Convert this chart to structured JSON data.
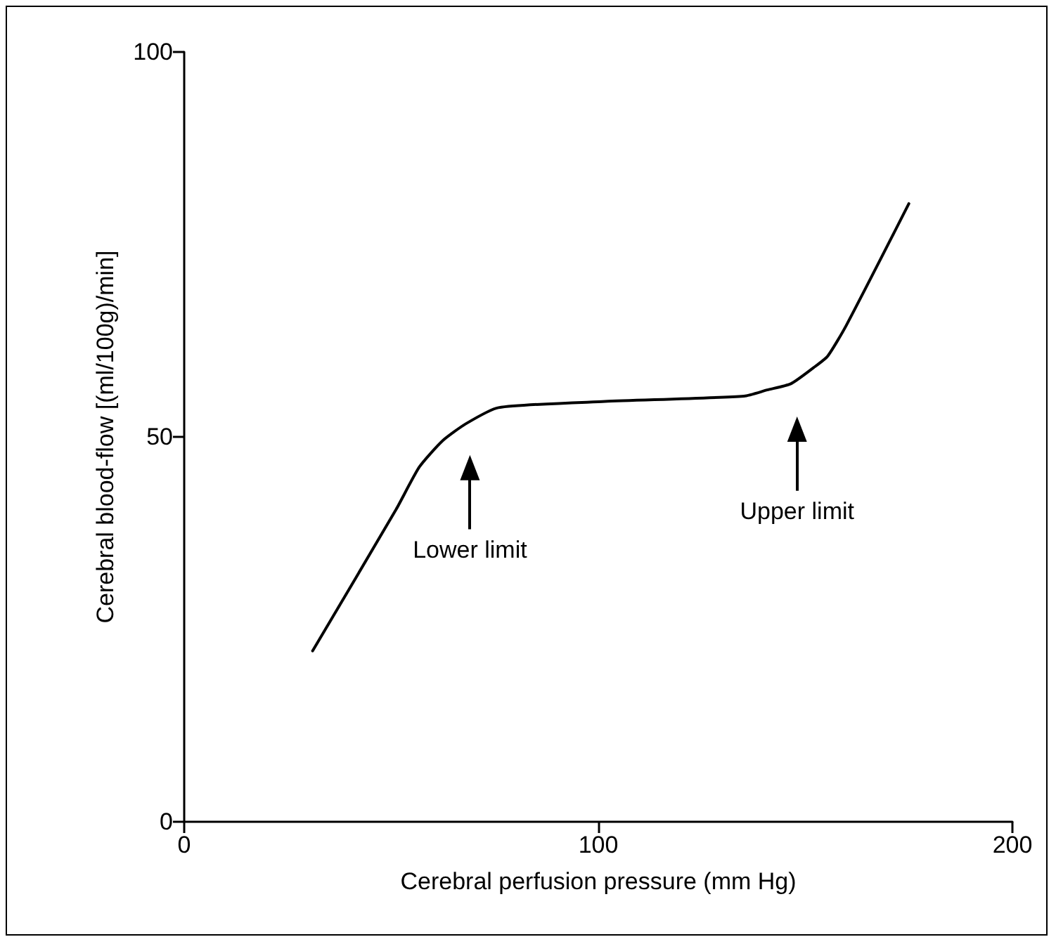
{
  "chart_data": {
    "type": "line",
    "xlabel": "Cerebral perfusion pressure (mm Hg)",
    "ylabel": "Cerebral blood-flow [(ml/100g)/min]",
    "x": [
      31.0,
      51.2,
      56.8,
      62.4,
      68.0,
      75.9,
      101.6,
      135.2,
      140.8,
      146.5,
      152.0,
      155.4,
      159.9,
      175.0
    ],
    "series": [
      {
        "color": "#000000",
        "values": [
          22.2,
          40.6,
          46.1,
          49.5,
          51.7,
          53.8,
          54.6,
          55.3,
          56.1,
          56.9,
          59.0,
          60.5,
          64.5,
          80.3
        ]
      }
    ],
    "xlim": [
      0,
      200
    ],
    "ylim": [
      0,
      100
    ],
    "xticks": [
      0,
      100,
      200
    ],
    "yticks": [
      0,
      50,
      100
    ],
    "marker": "none",
    "line_style": "solid",
    "annotations": [
      {
        "text": "Lower limit",
        "x": 69,
        "y": 46
      },
      {
        "text": "Upper limit",
        "x": 148,
        "y": 51
      }
    ]
  }
}
